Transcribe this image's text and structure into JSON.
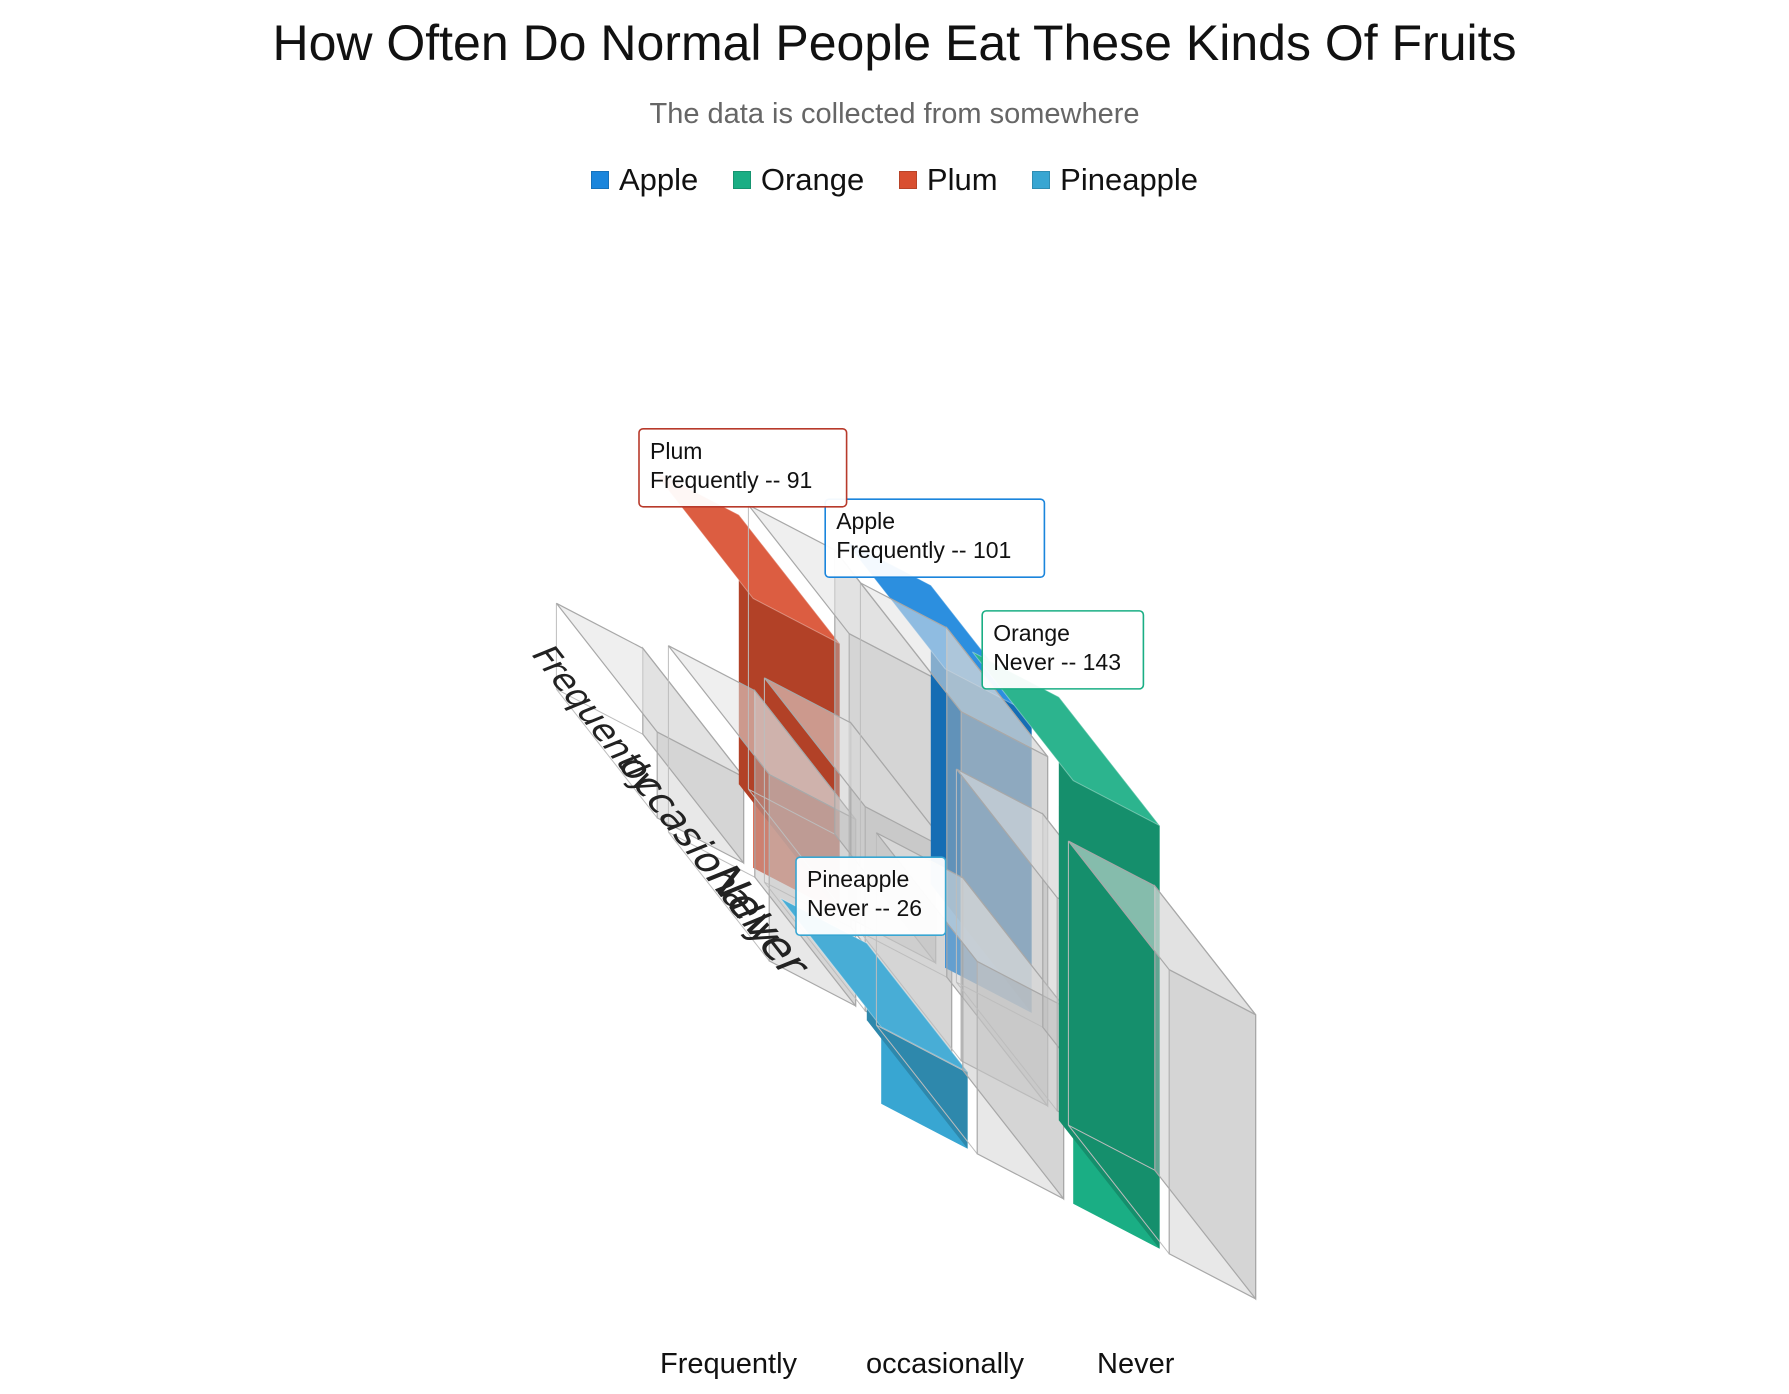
{
  "chart_data": {
    "type": "bar3d",
    "title": "How Often Do Normal People Eat These Kinds Of Fruits",
    "subtitle": "The data is collected from somewhere",
    "categories": [
      "Frequently",
      "occasionally",
      "Never"
    ],
    "series": [
      {
        "name": "Apple",
        "color": "#1a85dc",
        "values": {
          "Frequently": 101,
          "occasionally": 72,
          "Never": 96
        },
        "highlight": "Frequently"
      },
      {
        "name": "Orange",
        "color": "#1aae84",
        "values": {
          "Frequently": 96,
          "occasionally": 118,
          "Never": 143
        },
        "highlight": "Never"
      },
      {
        "name": "Plum",
        "color": "#d94f30",
        "values": {
          "Frequently": 91,
          "occasionally": 69,
          "Never": 65
        },
        "highlight": "Frequently"
      },
      {
        "name": "Pineapple",
        "color": "#38a6d2",
        "values": {
          "Frequently": 29,
          "occasionally": 63,
          "Never": 26
        },
        "highlight": "Never"
      }
    ],
    "tooltips": [
      {
        "series": "Apple",
        "category": "Frequently",
        "value": 101,
        "body": "Frequently -- 101",
        "border": "#1a85dc"
      },
      {
        "series": "Orange",
        "category": "Never",
        "value": 143,
        "body": "Never -- 143",
        "border": "#1aae84"
      },
      {
        "series": "Plum",
        "category": "Frequently",
        "value": 91,
        "body": "Frequently -- 91",
        "border": "#b83a2b"
      },
      {
        "series": "Pineapple",
        "category": "Never",
        "value": 26,
        "body": "Never -- 26",
        "border": "#38a6d2"
      }
    ],
    "bottom_labels": [
      "Frequently",
      "occasionally",
      "Never"
    ],
    "dim_color": "#d9d9d9",
    "legend_position": "top-center",
    "grid": false
  }
}
